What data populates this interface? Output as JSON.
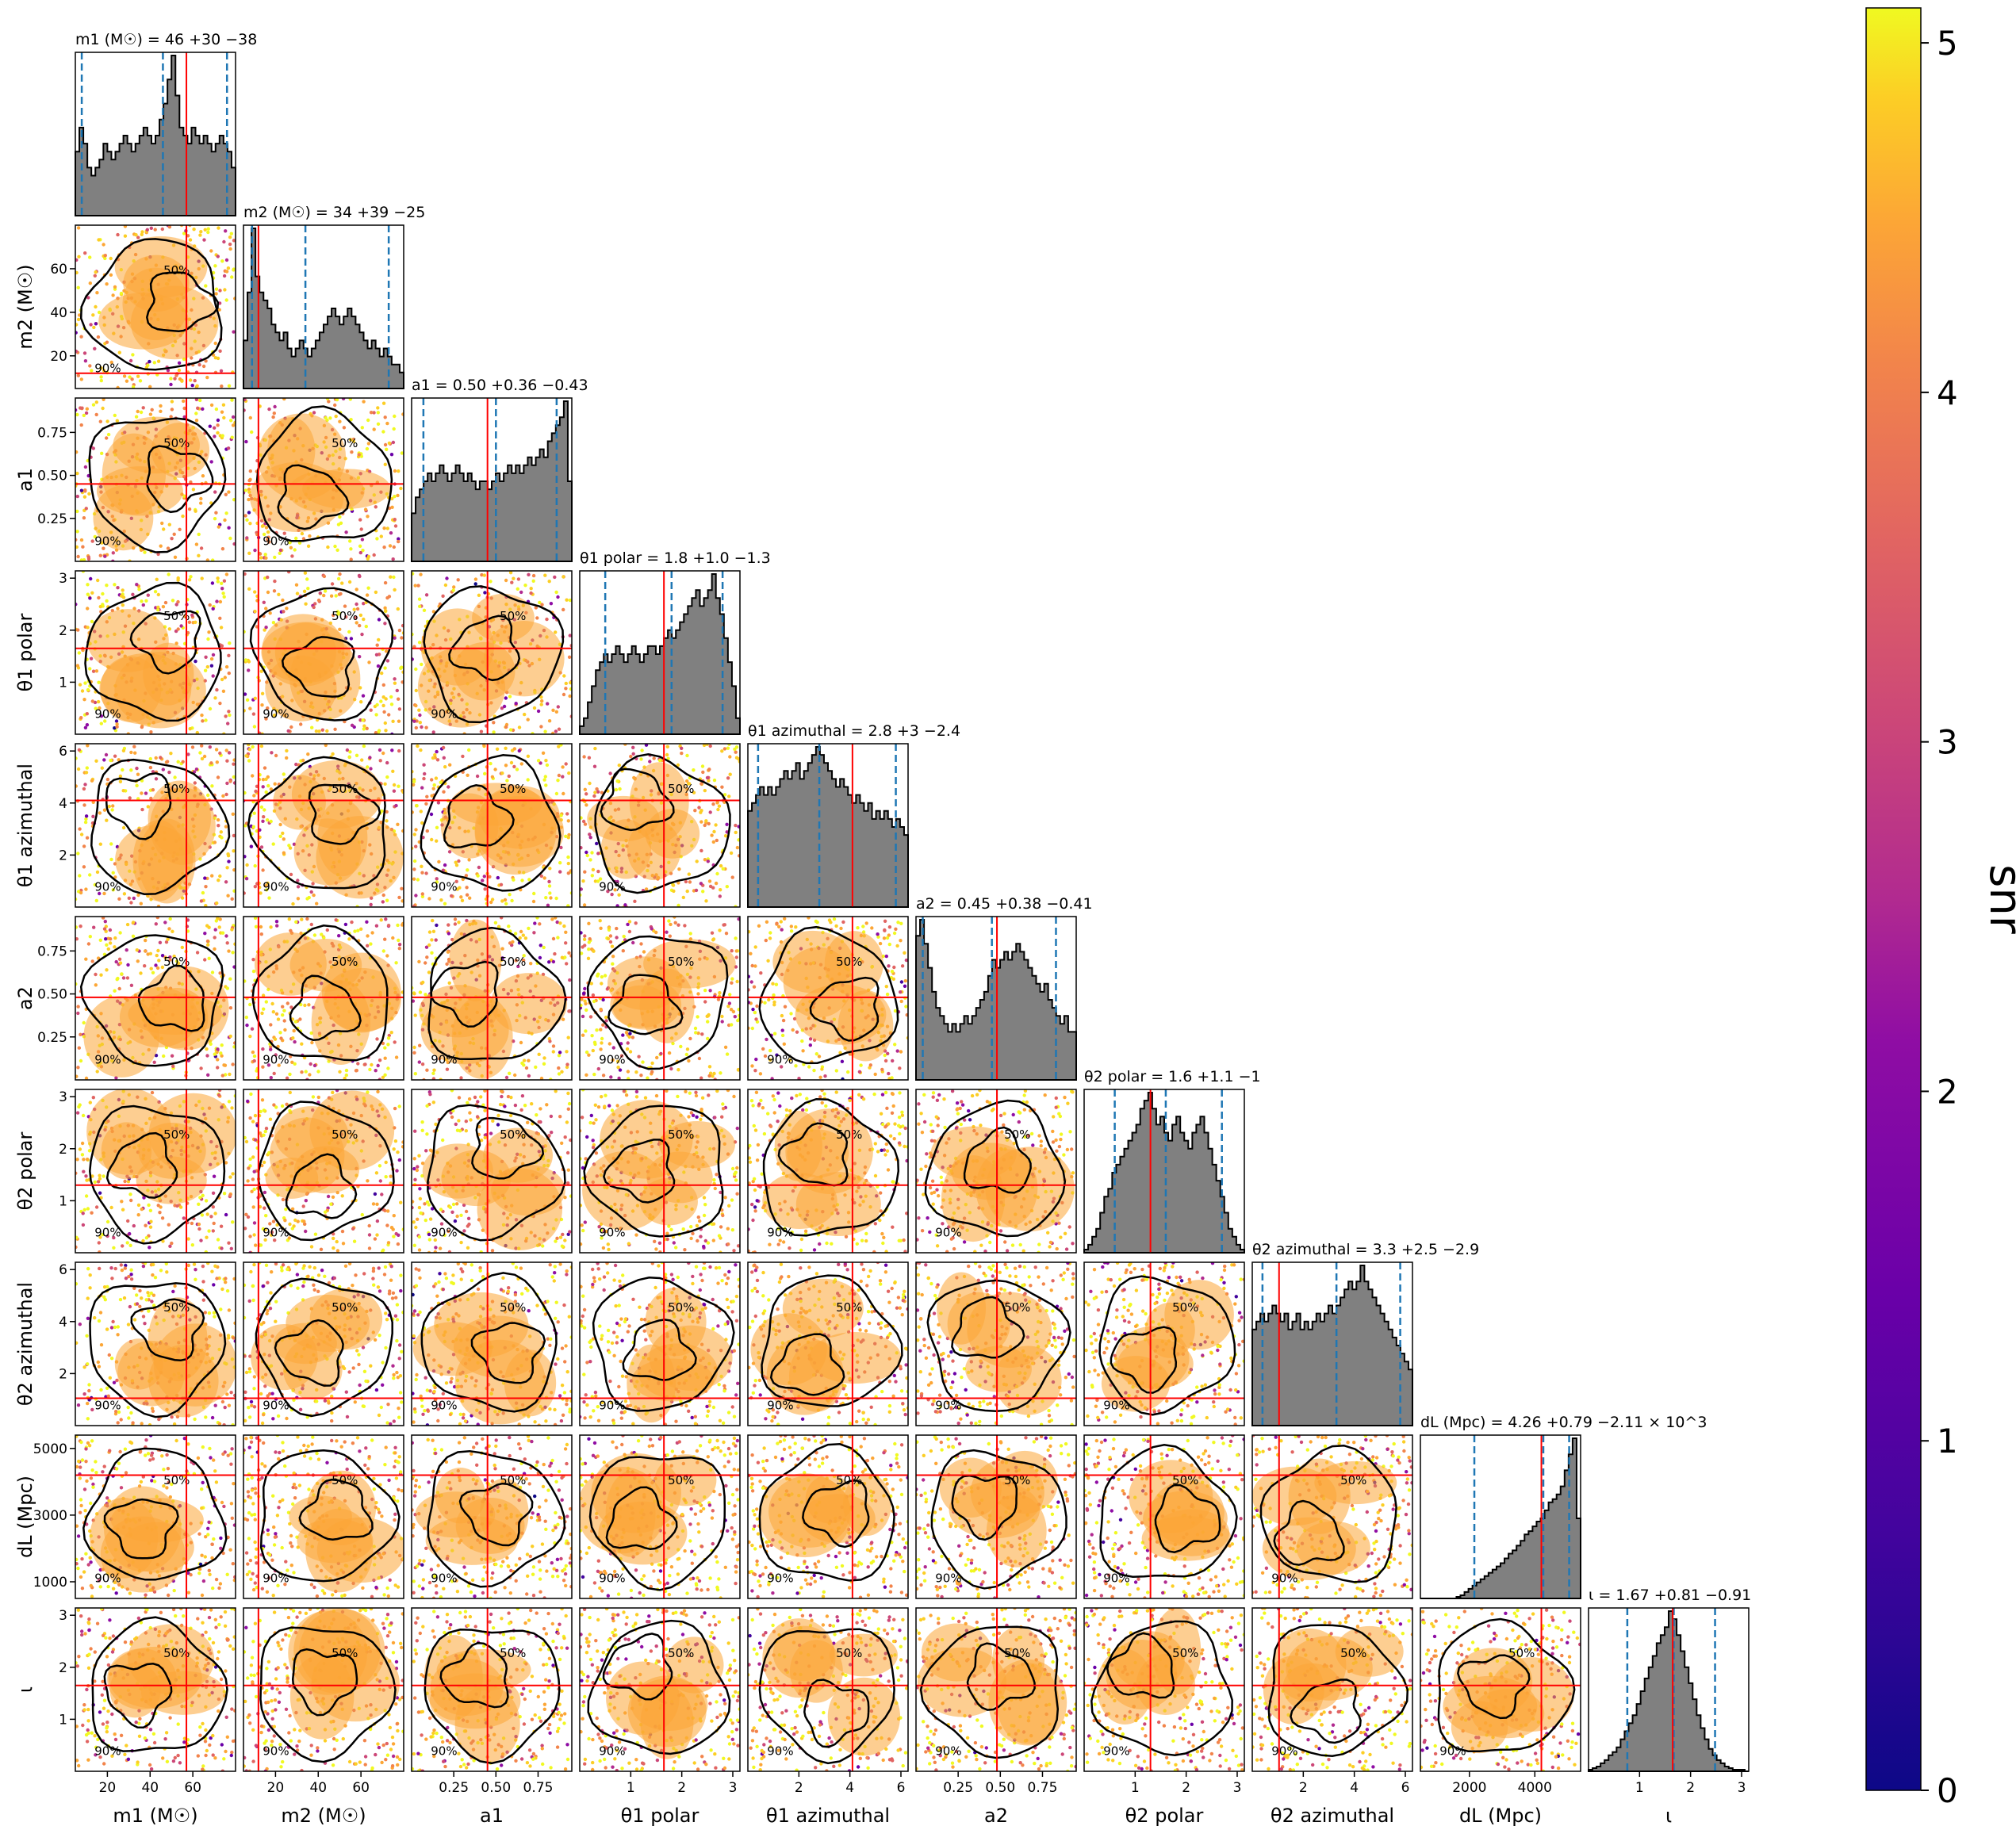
{
  "chart_data": {
    "type": "scatter",
    "subtype": "corner-plot",
    "parameters": [
      {
        "key": "m1",
        "axis_label": "m1 (M☉)",
        "title": "m1 (M☉) = 46 +30 −38",
        "median": 46,
        "plus": 30,
        "minus": 38,
        "truth": 57,
        "range": [
          5,
          80
        ],
        "ticks": [
          20,
          40,
          60
        ],
        "tick_labels": [
          "20",
          "40",
          "60"
        ],
        "hist": [
          0.4,
          0.55,
          0.45,
          0.3,
          0.25,
          0.3,
          0.35,
          0.45,
          0.4,
          0.35,
          0.4,
          0.45,
          0.5,
          0.45,
          0.4,
          0.45,
          0.5,
          0.55,
          0.5,
          0.45,
          0.5,
          0.6,
          0.7,
          0.85,
          1.0,
          0.75,
          0.55,
          0.5,
          0.45,
          0.55,
          0.5,
          0.45,
          0.5,
          0.45,
          0.4,
          0.45,
          0.5,
          0.45,
          0.4,
          0.3
        ]
      },
      {
        "key": "m2",
        "axis_label": "m2 (M☉)",
        "title": "m2 (M☉) = 34 +39 −25",
        "median": 34,
        "plus": 39,
        "minus": 25,
        "truth": 12,
        "range": [
          5,
          80
        ],
        "ticks": [
          20,
          40,
          60
        ],
        "tick_labels": [
          "20",
          "40",
          "60"
        ],
        "hist": [
          0.3,
          0.6,
          1.0,
          0.7,
          0.6,
          0.55,
          0.5,
          0.4,
          0.35,
          0.3,
          0.35,
          0.25,
          0.2,
          0.25,
          0.3,
          0.25,
          0.2,
          0.25,
          0.3,
          0.35,
          0.4,
          0.45,
          0.5,
          0.45,
          0.4,
          0.45,
          0.5,
          0.45,
          0.4,
          0.35,
          0.3,
          0.25,
          0.3,
          0.25,
          0.2,
          0.25,
          0.2,
          0.15,
          0.15,
          0.1
        ]
      },
      {
        "key": "a1",
        "axis_label": "a1",
        "title": "a1 = 0.50 +0.36 −0.43",
        "median": 0.5,
        "plus": 0.36,
        "minus": 0.43,
        "truth": 0.45,
        "range": [
          0,
          0.95
        ],
        "ticks": [
          0.25,
          0.5,
          0.75
        ],
        "tick_labels": [
          "0.25",
          "0.50",
          "0.75"
        ],
        "hist": [
          0.3,
          0.4,
          0.45,
          0.5,
          0.55,
          0.5,
          0.55,
          0.6,
          0.55,
          0.5,
          0.55,
          0.6,
          0.55,
          0.5,
          0.55,
          0.5,
          0.45,
          0.5,
          0.5,
          0.45,
          0.5,
          0.55,
          0.5,
          0.55,
          0.6,
          0.55,
          0.6,
          0.55,
          0.6,
          0.65,
          0.6,
          0.65,
          0.7,
          0.65,
          0.75,
          0.8,
          0.85,
          0.9,
          1.0,
          0.5
        ]
      },
      {
        "key": "t1p",
        "axis_label": "θ1 polar",
        "title": "θ1 polar = 1.8 +1.0 −1.3",
        "median": 1.8,
        "plus": 1.0,
        "minus": 1.3,
        "truth": 1.65,
        "range": [
          0,
          3.14
        ],
        "ticks": [
          1,
          2,
          3
        ],
        "tick_labels": [
          "1",
          "2",
          "3"
        ],
        "hist": [
          0.05,
          0.1,
          0.2,
          0.3,
          0.4,
          0.45,
          0.5,
          0.45,
          0.5,
          0.55,
          0.5,
          0.45,
          0.5,
          0.55,
          0.5,
          0.45,
          0.5,
          0.55,
          0.55,
          0.5,
          0.55,
          0.6,
          0.65,
          0.6,
          0.65,
          0.7,
          0.75,
          0.8,
          0.85,
          0.9,
          0.8,
          0.85,
          0.9,
          1.0,
          0.85,
          0.75,
          0.6,
          0.45,
          0.3,
          0.1
        ]
      },
      {
        "key": "t1a",
        "axis_label": "θ1 azimuthal",
        "title": "θ1 azimuthal = 2.8 +3 −2.4",
        "median": 2.8,
        "plus": 3,
        "minus": 2.4,
        "truth": 4.1,
        "range": [
          0,
          6.28
        ],
        "ticks": [
          2,
          4,
          6
        ],
        "tick_labels": [
          "2",
          "4",
          "6"
        ],
        "hist": [
          0.6,
          0.65,
          0.7,
          0.75,
          0.7,
          0.75,
          0.7,
          0.75,
          0.8,
          0.85,
          0.8,
          0.85,
          0.9,
          0.8,
          0.85,
          0.9,
          0.95,
          1.0,
          0.95,
          0.9,
          0.85,
          0.8,
          0.75,
          0.8,
          0.75,
          0.7,
          0.65,
          0.7,
          0.65,
          0.6,
          0.65,
          0.55,
          0.6,
          0.55,
          0.6,
          0.55,
          0.5,
          0.55,
          0.5,
          0.45
        ]
      },
      {
        "key": "a2",
        "axis_label": "a2",
        "title": "a2 = 0.45 +0.38 −0.41",
        "median": 0.45,
        "plus": 0.38,
        "minus": 0.41,
        "truth": 0.48,
        "range": [
          0,
          0.95
        ],
        "ticks": [
          0.25,
          0.5,
          0.75
        ],
        "tick_labels": [
          "0.25",
          "0.50",
          "0.75"
        ],
        "hist": [
          0.9,
          1.0,
          0.85,
          0.7,
          0.55,
          0.45,
          0.4,
          0.35,
          0.3,
          0.35,
          0.3,
          0.35,
          0.4,
          0.35,
          0.4,
          0.45,
          0.5,
          0.55,
          0.65,
          0.75,
          0.7,
          0.75,
          0.8,
          0.75,
          0.8,
          0.85,
          0.8,
          0.75,
          0.7,
          0.65,
          0.6,
          0.55,
          0.6,
          0.5,
          0.45,
          0.4,
          0.35,
          0.4,
          0.3,
          0.3
        ]
      },
      {
        "key": "t2p",
        "axis_label": "θ2 polar",
        "title": "θ2 polar = 1.6 +1.1 −1",
        "median": 1.6,
        "plus": 1.1,
        "minus": 1.0,
        "truth": 1.3,
        "range": [
          0,
          3.14
        ],
        "ticks": [
          1,
          2,
          3
        ],
        "tick_labels": [
          "1",
          "2",
          "3"
        ],
        "hist": [
          0.02,
          0.05,
          0.1,
          0.15,
          0.25,
          0.35,
          0.4,
          0.5,
          0.55,
          0.6,
          0.65,
          0.7,
          0.75,
          0.8,
          0.9,
          0.95,
          1.0,
          0.9,
          0.8,
          0.85,
          0.75,
          0.7,
          0.8,
          0.85,
          0.75,
          0.7,
          0.65,
          0.75,
          0.8,
          0.85,
          0.75,
          0.65,
          0.55,
          0.45,
          0.35,
          0.25,
          0.15,
          0.1,
          0.05,
          0.02
        ]
      },
      {
        "key": "t2a",
        "axis_label": "θ2 azimuthal",
        "title": "θ2 azimuthal = 3.3 +2.5 −2.9",
        "median": 3.3,
        "plus": 2.5,
        "minus": 2.9,
        "truth": 1.05,
        "range": [
          0,
          6.28
        ],
        "ticks": [
          2,
          4,
          6
        ],
        "tick_labels": [
          "2",
          "4",
          "6"
        ],
        "hist": [
          0.6,
          0.65,
          0.7,
          0.65,
          0.7,
          0.75,
          0.7,
          0.65,
          0.7,
          0.6,
          0.65,
          0.7,
          0.6,
          0.65,
          0.6,
          0.65,
          0.7,
          0.65,
          0.7,
          0.75,
          0.7,
          0.75,
          0.8,
          0.85,
          0.9,
          0.85,
          0.9,
          1.0,
          0.9,
          0.85,
          0.8,
          0.75,
          0.7,
          0.65,
          0.6,
          0.55,
          0.5,
          0.45,
          0.4,
          0.35
        ]
      },
      {
        "key": "dL",
        "axis_label": "dL (Mpc)",
        "title": "dL (Mpc) = 4.26 +0.79 −2.11 × 10^3",
        "median": 4260,
        "plus": 790,
        "minus": 2110,
        "truth": 4200,
        "range": [
          500,
          5400
        ],
        "ticks": [
          2000,
          4000
        ],
        "tick_labels": [
          "2000",
          "4000"
        ],
        "y_ticks": [
          1000,
          3000,
          5000
        ],
        "y_tick_labels": [
          "1000",
          "3000",
          "5000"
        ],
        "hist": [
          0,
          0,
          0,
          0,
          0,
          0,
          0,
          0,
          0,
          0.01,
          0.02,
          0.04,
          0.06,
          0.08,
          0.1,
          0.12,
          0.14,
          0.16,
          0.18,
          0.2,
          0.22,
          0.25,
          0.28,
          0.3,
          0.33,
          0.36,
          0.4,
          0.42,
          0.45,
          0.48,
          0.5,
          0.55,
          0.6,
          0.62,
          0.65,
          0.7,
          0.8,
          0.9,
          1.0,
          0.5
        ]
      },
      {
        "key": "iota",
        "axis_label": "ι",
        "title": "ι = 1.67 +0.81 −0.91",
        "median": 1.67,
        "plus": 0.81,
        "minus": 0.91,
        "truth": 1.65,
        "range": [
          0,
          3.14
        ],
        "ticks": [
          1,
          2,
          3
        ],
        "tick_labels": [
          "1",
          "2",
          "3"
        ],
        "hist": [
          0.01,
          0.02,
          0.03,
          0.05,
          0.07,
          0.1,
          0.12,
          0.15,
          0.2,
          0.25,
          0.3,
          0.35,
          0.42,
          0.5,
          0.58,
          0.65,
          0.72,
          0.8,
          0.85,
          0.9,
          1.0,
          0.95,
          0.85,
          0.75,
          0.65,
          0.55,
          0.45,
          0.35,
          0.27,
          0.2,
          0.14,
          0.1,
          0.07,
          0.05,
          0.03,
          0.02,
          0.01,
          0.01,
          0.01,
          0.0
        ]
      }
    ],
    "contour_labels": [
      "50%",
      "90%"
    ],
    "colorbar": {
      "label": "snr",
      "range": [
        0,
        5.1
      ],
      "ticks": [
        0,
        1,
        2,
        3,
        4,
        5
      ],
      "tick_labels": [
        "0",
        "1",
        "2",
        "3",
        "4",
        "5"
      ],
      "colormap": "plasma"
    },
    "colors": {
      "truth_line": "#ff0000",
      "quantile_line": "#1f77b4",
      "hist_fill": "#808080",
      "hist_edge": "#000000",
      "contour": "#000000"
    },
    "grid": false
  }
}
